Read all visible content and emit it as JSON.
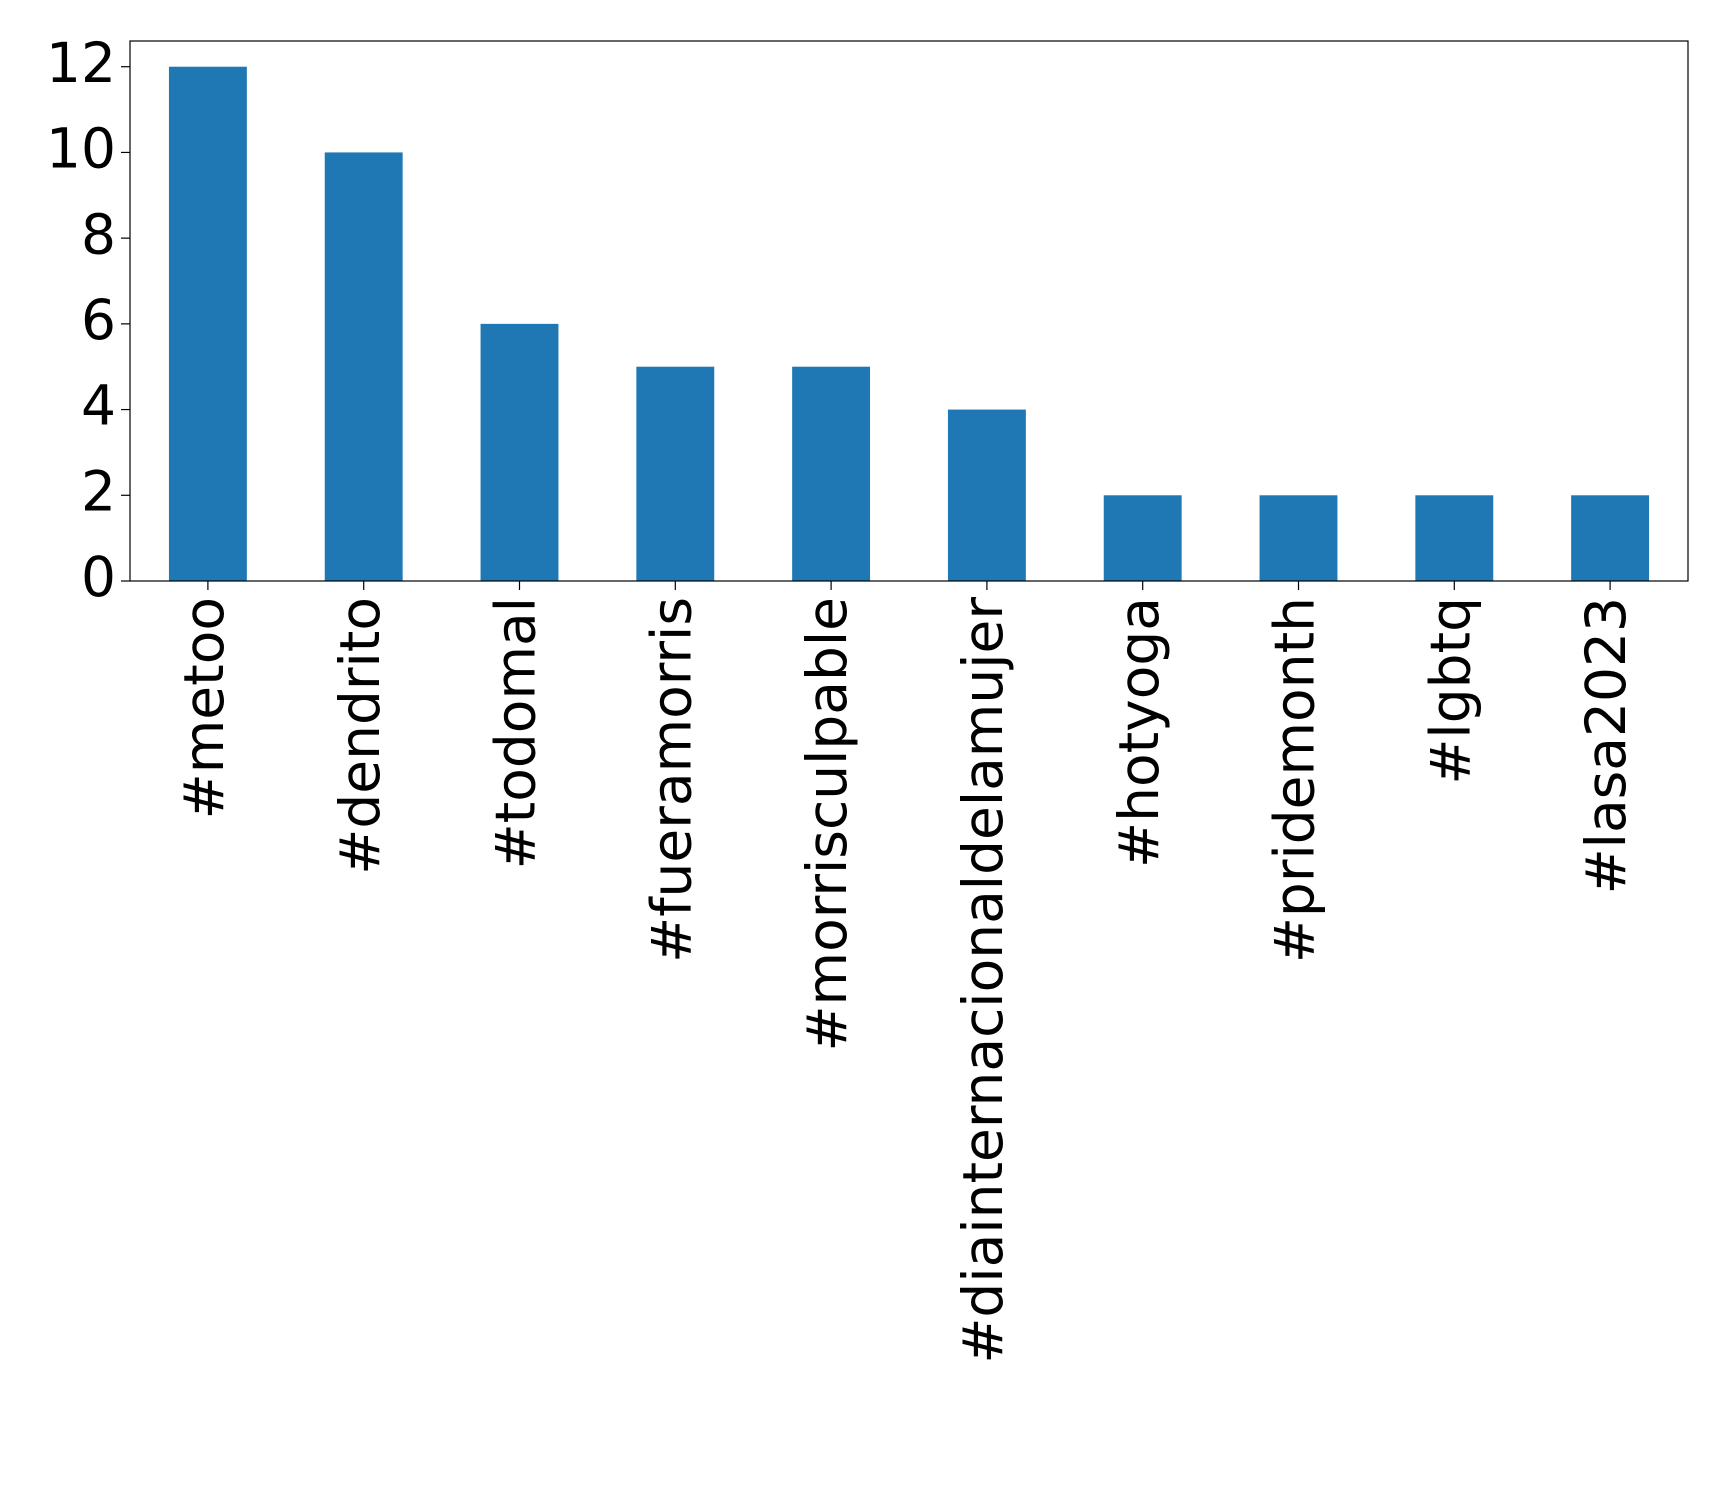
{
  "chart_data": {
    "type": "bar",
    "categories": [
      "#metoo",
      "#dendrito",
      "#todomal",
      "#fueramorris",
      "#morrisculpable",
      "#diainternacionaldelamujer",
      "#hotyoga",
      "#pridemonth",
      "#lgbtq",
      "#lasa2023"
    ],
    "values": [
      12,
      10,
      6,
      5,
      5,
      4,
      2,
      2,
      2,
      2
    ],
    "color": "#1f77b4",
    "ylim": [
      0,
      12.6
    ],
    "yticks": [
      0,
      2,
      4,
      6,
      8,
      10,
      12
    ],
    "grid": false
  }
}
